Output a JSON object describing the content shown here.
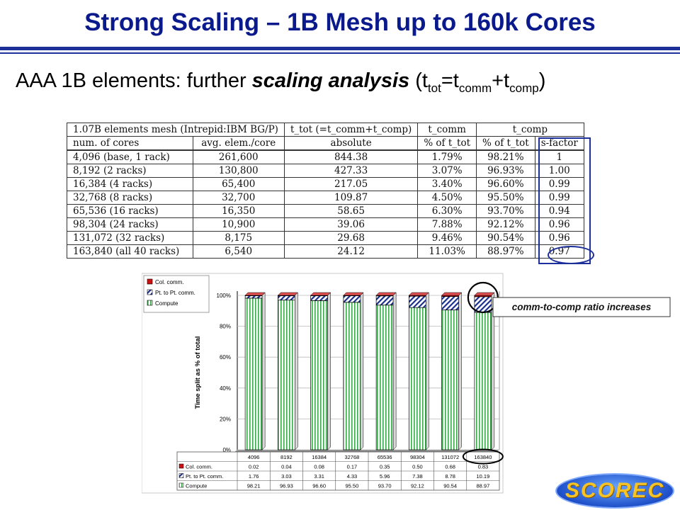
{
  "slide": {
    "title": "Strong Scaling – 1B Mesh up to 160k Cores",
    "subtitle": {
      "prefix": "AAA 1B elements: further ",
      "emph": "scaling analysis",
      "paren_open": " (t",
      "sub_tot": "tot",
      "eq": "=t",
      "sub_comm": "comm",
      "plus": "+t",
      "sub_comp": "comp",
      "paren_close": ")"
    }
  },
  "table": {
    "header1": [
      "1.07B elements mesh (Intrepid:IBM BG/P)",
      "t_tot (=t_comm+t_comp)",
      "t_comm",
      "t_comp"
    ],
    "header2": [
      "num. of cores",
      "avg. elem./core",
      "absolute",
      "% of t_tot",
      "% of t_tot",
      "s-factor"
    ],
    "rows": [
      [
        "4,096 (base, 1 rack)",
        "261,600",
        "844.38",
        "1.79%",
        "98.21%",
        "1"
      ],
      [
        "8,192 (2 racks)",
        "130,800",
        "427.33",
        "3.07%",
        "96.93%",
        "1.00"
      ],
      [
        "16,384 (4 racks)",
        "65,400",
        "217.05",
        "3.40%",
        "96.60%",
        "0.99"
      ],
      [
        "32,768 (8 racks)",
        "32,700",
        "109.87",
        "4.50%",
        "95.50%",
        "0.99"
      ],
      [
        "65,536 (16 racks)",
        "16,350",
        "58.65",
        "6.30%",
        "93.70%",
        "0.94"
      ],
      [
        "98,304 (24 racks)",
        "10,900",
        "39.06",
        "7.88%",
        "92.12%",
        "0.96"
      ],
      [
        "131,072 (32 racks)",
        "8,175",
        "29.68",
        "9.46%",
        "90.54%",
        "0.96"
      ],
      [
        "163,840 (all 40 racks)",
        "6,540",
        "24.12",
        "11.03%",
        "88.97%",
        "0.97"
      ]
    ]
  },
  "chart_data": {
    "type": "bar",
    "stacked": true,
    "categories": [
      "4096",
      "8192",
      "16384",
      "32768",
      "65536",
      "98304",
      "131072",
      "163840"
    ],
    "series": [
      {
        "name": "Col. comm.",
        "values": [
          0.02,
          0.04,
          0.08,
          0.17,
          0.35,
          0.5,
          0.68,
          0.83
        ],
        "color": "#d01010"
      },
      {
        "name": "Pt. to Pt. comm.",
        "values": [
          1.76,
          3.03,
          3.31,
          4.33,
          5.96,
          7.38,
          8.78,
          10.19
        ],
        "color": "#1a2f8a"
      },
      {
        "name": "Compute",
        "values": [
          98.21,
          96.93,
          96.6,
          95.5,
          93.7,
          92.12,
          90.54,
          88.97
        ],
        "color": "#3aa94a"
      }
    ],
    "yticks": [
      "0%",
      "20%",
      "40%",
      "60%",
      "80%",
      "100%"
    ],
    "ylim": [
      0,
      100
    ],
    "ylabel": "Time split as % of total",
    "legend": "top-left",
    "annotation": "comm-to-comp ratio increases",
    "colors": {
      "frame": "#c8c8c8",
      "floor": "#8c8c8c"
    }
  }
}
